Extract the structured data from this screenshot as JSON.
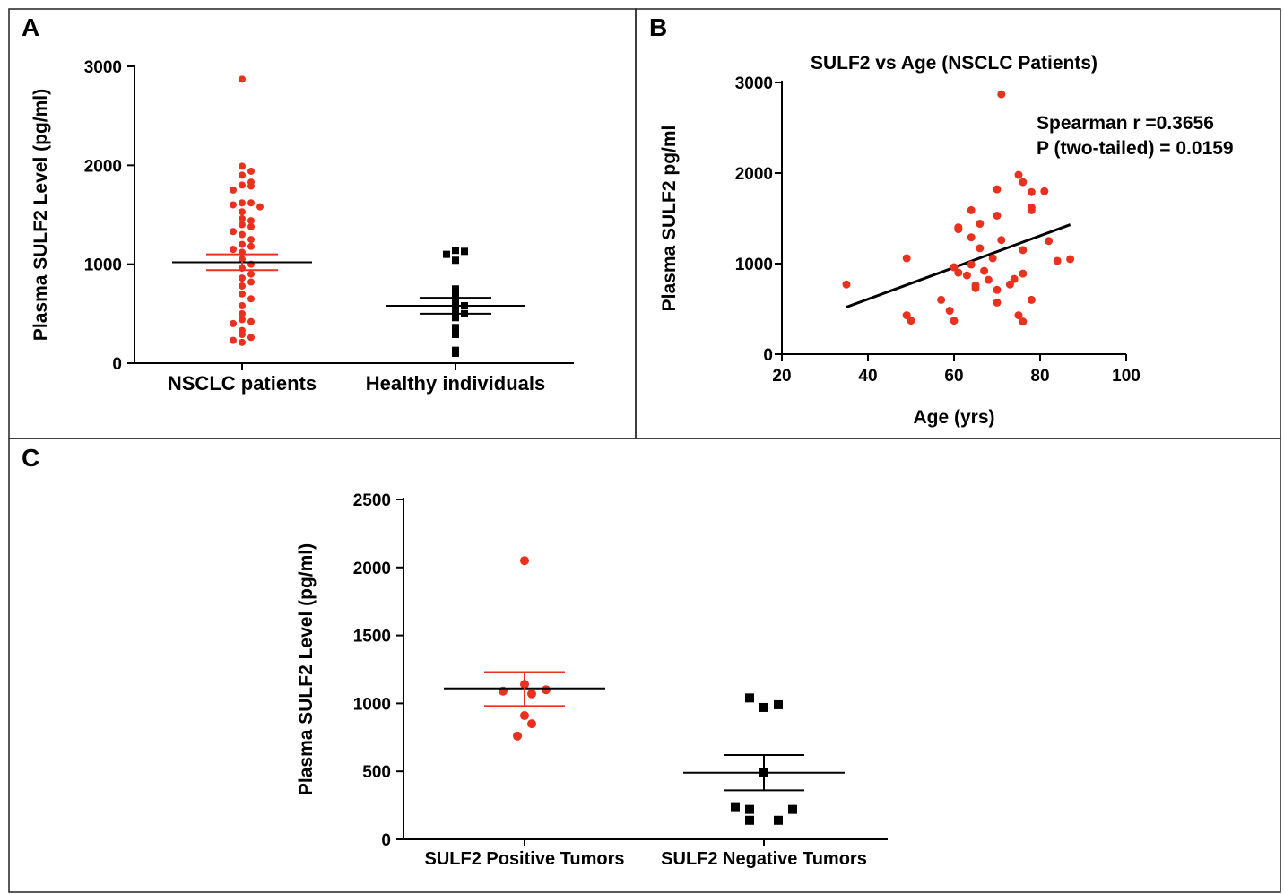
{
  "colors": {
    "red": "#e8321f",
    "black": "#000000"
  },
  "chart_data": [
    {
      "panel": "A",
      "type": "scatter",
      "subtype": "dot-plot-with-mean-sem",
      "title": "",
      "xlabel": "",
      "ylabel": "Plasma SULF2 Level (pg/ml)",
      "ylim": [
        0,
        3000
      ],
      "yticks": [
        "0",
        "1000",
        "2000",
        "3000"
      ],
      "categories": [
        "NSCLC patients",
        "Healthy individuals"
      ],
      "series": [
        {
          "marker": "circle",
          "color": "#e8321f",
          "mean": 1020,
          "sem_low": 940,
          "sem_high": 1100,
          "values": [
            2870,
            1990,
            1940,
            1900,
            1830,
            1800,
            1790,
            1750,
            1620,
            1620,
            1600,
            1580,
            1530,
            1460,
            1440,
            1400,
            1380,
            1330,
            1300,
            1250,
            1200,
            1180,
            1150,
            1120,
            1050,
            1000,
            960,
            900,
            860,
            820,
            780,
            700,
            650,
            580,
            500,
            440,
            420,
            400,
            330,
            290,
            260,
            230,
            210
          ]
        },
        {
          "marker": "square",
          "color": "#000000",
          "mean": 580,
          "sem_low": 500,
          "sem_high": 660,
          "values": [
            1140,
            1130,
            1100,
            1040,
            750,
            680,
            620,
            580,
            540,
            500,
            460,
            360,
            290,
            130,
            100
          ]
        }
      ]
    },
    {
      "panel": "B",
      "type": "scatter",
      "title": "SULF2 vs Age (NSCLC Patients)",
      "xlabel": "Age (yrs)",
      "ylabel": "Plasma SULF2 pg/ml",
      "xlim": [
        20,
        100
      ],
      "ylim": [
        0,
        3000
      ],
      "xticks": [
        "20",
        "40",
        "60",
        "80",
        "100"
      ],
      "yticks": [
        "0",
        "1000",
        "2000",
        "3000"
      ],
      "annotations": [
        "Spearman r =0.3656",
        "P (two-tailed) = 0.0159"
      ],
      "trendline": {
        "x": [
          35,
          87
        ],
        "y": [
          520,
          1430
        ]
      },
      "points": [
        [
          35,
          770
        ],
        [
          49,
          1060
        ],
        [
          49,
          430
        ],
        [
          50,
          370
        ],
        [
          57,
          600
        ],
        [
          59,
          480
        ],
        [
          60,
          370
        ],
        [
          60,
          960
        ],
        [
          61,
          1400
        ],
        [
          61,
          1380
        ],
        [
          61,
          900
        ],
        [
          63,
          870
        ],
        [
          64,
          1590
        ],
        [
          64,
          1290
        ],
        [
          64,
          990
        ],
        [
          65,
          760
        ],
        [
          65,
          730
        ],
        [
          66,
          1440
        ],
        [
          66,
          1170
        ],
        [
          67,
          920
        ],
        [
          68,
          820
        ],
        [
          69,
          1060
        ],
        [
          70,
          1820
        ],
        [
          70,
          1530
        ],
        [
          70,
          710
        ],
        [
          70,
          570
        ],
        [
          71,
          2870
        ],
        [
          71,
          1260
        ],
        [
          73,
          770
        ],
        [
          74,
          830
        ],
        [
          75,
          1980
        ],
        [
          75,
          430
        ],
        [
          76,
          1900
        ],
        [
          76,
          1150
        ],
        [
          76,
          890
        ],
        [
          76,
          360
        ],
        [
          78,
          1790
        ],
        [
          78,
          1620
        ],
        [
          78,
          1590
        ],
        [
          78,
          600
        ],
        [
          81,
          1800
        ],
        [
          82,
          1250
        ],
        [
          84,
          1030
        ],
        [
          87,
          1050
        ]
      ]
    },
    {
      "panel": "C",
      "type": "scatter",
      "subtype": "dot-plot-with-mean-sem",
      "title": "",
      "xlabel": "",
      "ylabel": "Plasma SULF2 Level (pg/ml)",
      "ylim": [
        0,
        2500
      ],
      "yticks": [
        "0",
        "500",
        "1000",
        "1500",
        "2000",
        "2500"
      ],
      "categories": [
        "SULF2 Positive Tumors",
        "SULF2 Negative Tumors"
      ],
      "series": [
        {
          "marker": "circle",
          "color": "#e8321f",
          "mean": 1110,
          "sem_low": 980,
          "sem_high": 1230,
          "values": [
            2050,
            1140,
            1100,
            1090,
            1070,
            910,
            850,
            760
          ]
        },
        {
          "marker": "square",
          "color": "#000000",
          "mean": 490,
          "sem_low": 360,
          "sem_high": 620,
          "values": [
            1040,
            990,
            970,
            490,
            240,
            220,
            220,
            140,
            140
          ]
        }
      ]
    }
  ]
}
